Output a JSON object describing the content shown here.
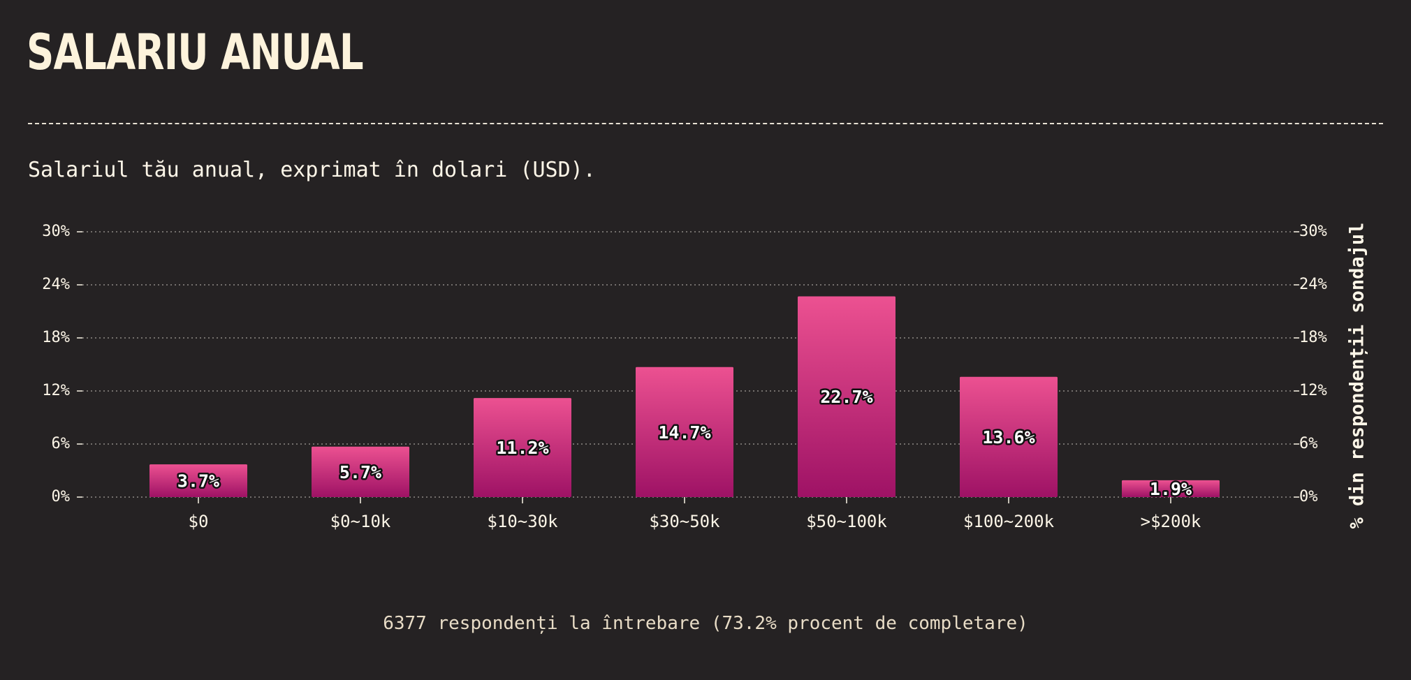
{
  "page": {
    "title": "SALARIU ANUAL",
    "subtitle": "Salariul tău anual, exprimat în dolari (USD).",
    "footer": "6377 respondenți la întrebare (73.2% procent de completare)"
  },
  "colors": {
    "background": "#252223",
    "bar_top": "#ec5191",
    "bar_bottom": "#9e1265",
    "grid": "#8f8a86"
  },
  "chart_data": {
    "type": "bar",
    "categories": [
      "$0",
      "$0~10k",
      "$10~30k",
      "$30~50k",
      "$50~100k",
      "$100~200k",
      ">$200k"
    ],
    "values": [
      3.7,
      5.7,
      11.2,
      14.7,
      22.7,
      13.6,
      1.9
    ],
    "value_labels": [
      "3.7%",
      "5.7%",
      "11.2%",
      "14.7%",
      "22.7%",
      "13.6%",
      "1.9%"
    ],
    "ylabel": "% din respondenții sondajul",
    "ylim": [
      0,
      30
    ],
    "yticks": [
      0,
      6,
      12,
      18,
      24,
      30
    ],
    "ytick_labels": [
      "0%",
      "6%",
      "12%",
      "18%",
      "24%",
      "30%"
    ],
    "grid": true,
    "y_axis_sides": [
      "left",
      "right"
    ]
  }
}
